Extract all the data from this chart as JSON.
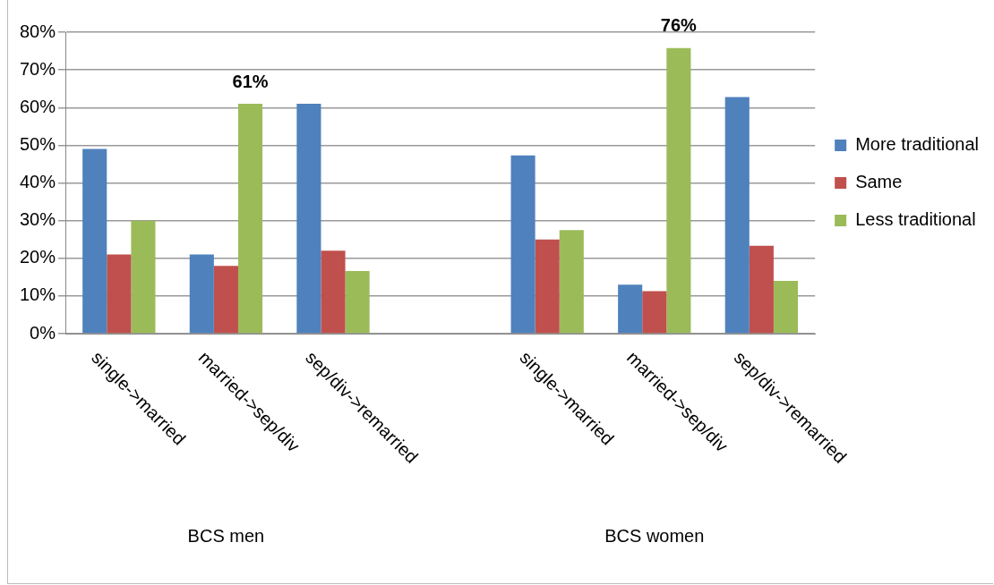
{
  "chart_data": {
    "type": "bar",
    "categories": [
      "single->married",
      "married->sep/div",
      "sep/div->remarried",
      null,
      "single->married",
      "married->sep/div",
      "sep/div->remarried"
    ],
    "series": [
      {
        "name": "More traditional",
        "color": "#4f81bd",
        "values": [
          49,
          21,
          61,
          null,
          47.3,
          13,
          62.8
        ]
      },
      {
        "name": "Same",
        "color": "#c0504d",
        "values": [
          21,
          18,
          22,
          null,
          25,
          11.3,
          23.3
        ]
      },
      {
        "name": "Less traditional",
        "color": "#9bbb59",
        "values": [
          30,
          61,
          16.6,
          null,
          27.5,
          75.8,
          14
        ],
        "value_labels": [
          null,
          "61%",
          null,
          null,
          null,
          "76%",
          null
        ]
      }
    ],
    "ylim": [
      0,
      80
    ],
    "yticks": [
      {
        "value": 0,
        "label": "0%"
      },
      {
        "value": 10,
        "label": "10%"
      },
      {
        "value": 20,
        "label": "20%"
      },
      {
        "value": 30,
        "label": "30%"
      },
      {
        "value": 40,
        "label": "40%"
      },
      {
        "value": 50,
        "label": "50%"
      },
      {
        "value": 60,
        "label": "60%"
      },
      {
        "value": 70,
        "label": "70%"
      },
      {
        "value": 80,
        "label": "80%"
      }
    ],
    "grid": "y",
    "legend": "right",
    "annotations": [
      "BCS men",
      "BCS women"
    ]
  }
}
